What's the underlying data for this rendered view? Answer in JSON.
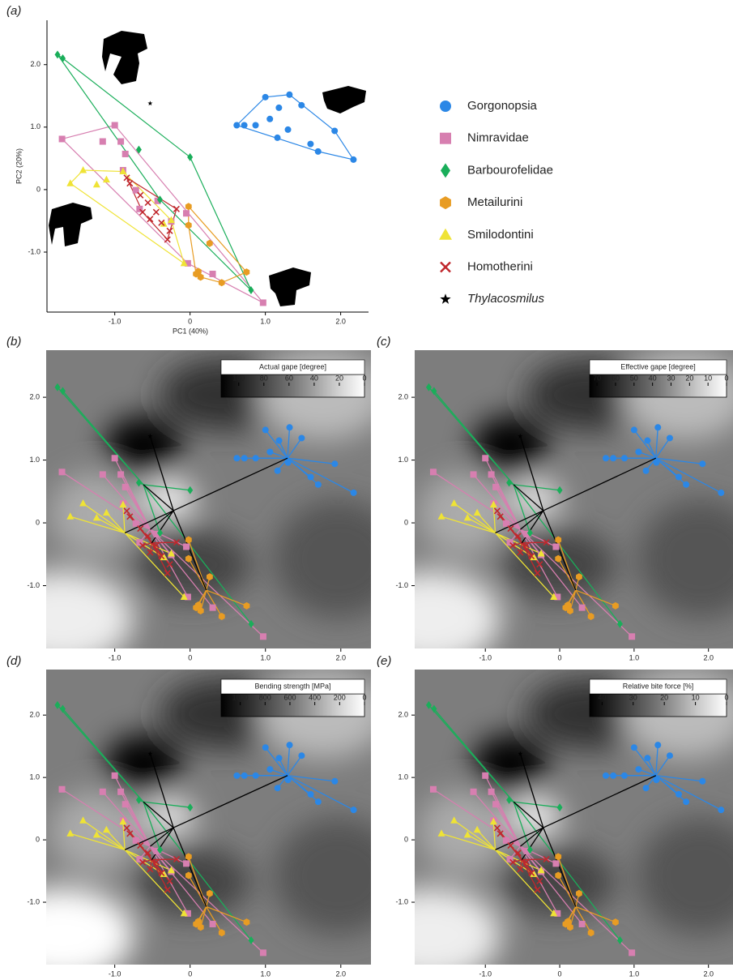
{
  "chart_data": [
    {
      "type": "scatter",
      "title": "(a)",
      "x_label": "PC1 (40%)",
      "y_label": "PC2 (20%)",
      "xlim": [
        -1.9,
        2.37
      ],
      "ylim": [
        -1.96,
        2.71
      ],
      "xticks": [
        {
          "value": -1,
          "label": "-1.0"
        },
        0,
        {
          "value": 1,
          "label": "1.0"
        },
        {
          "value": 2,
          "label": "2.0"
        }
      ],
      "yticks": [
        {
          "value": 2,
          "label": "2.0"
        },
        {
          "value": 1,
          "label": "1.0"
        },
        0,
        {
          "value": -1,
          "label": "-1.0"
        }
      ],
      "hulls": true,
      "series": [
        {
          "name": "Gorgonopsia",
          "color": "#2b87e6",
          "text_color": "#2a7fc4",
          "marker": "circle",
          "x": [
            0.62,
            0.72,
            0.87,
            1.0,
            1.32,
            1.48,
            1.18,
            1.06,
            1.3,
            1.16,
            1.92,
            1.6,
            2.17,
            1.7
          ],
          "y": [
            1.03,
            1.03,
            1.03,
            1.48,
            1.52,
            1.35,
            1.31,
            1.13,
            0.96,
            0.83,
            0.94,
            0.73,
            0.48,
            0.61
          ]
        },
        {
          "name": "Nimravidae",
          "color": "#d77fb0",
          "text_color": "#d070a8",
          "marker": "square",
          "x": [
            -1.7,
            -1.0,
            -1.16,
            -0.92,
            -0.86,
            -0.89,
            -0.72,
            -0.67,
            -0.43,
            -0.25,
            -0.05,
            -0.03,
            0.3,
            0.97
          ],
          "y": [
            0.81,
            1.03,
            0.77,
            0.77,
            0.57,
            0.31,
            -0.01,
            -0.31,
            -0.18,
            -0.51,
            -0.38,
            -1.18,
            -1.35,
            -1.81
          ]
        },
        {
          "name": "Barbourofelidae",
          "color": "#1aae5a",
          "text_color": "#1a9e50",
          "marker": "diamond",
          "x": [
            -1.76,
            -1.69,
            -0.68,
            0.0,
            -0.4,
            0.81
          ],
          "y": [
            2.16,
            2.1,
            0.64,
            0.52,
            -0.16,
            -1.61
          ]
        },
        {
          "name": "Metailurini",
          "color": "#e89c23",
          "text_color": "#e0901a",
          "marker": "hexagon",
          "x": [
            -0.02,
            -0.02,
            0.26,
            0.11,
            0.14,
            0.42,
            0.75,
            0.08
          ],
          "y": [
            -0.27,
            -0.57,
            -0.86,
            -1.31,
            -1.4,
            -1.49,
            -1.32,
            -1.35
          ]
        },
        {
          "name": "Smilodontini",
          "color": "#efe335",
          "text_color": "#e6d62a",
          "marker": "triangle",
          "x": [
            -1.42,
            -1.59,
            -1.24,
            -1.11,
            -0.89,
            -0.25,
            -0.08,
            -0.35
          ],
          "y": [
            0.31,
            0.1,
            0.08,
            0.16,
            0.29,
            -0.49,
            -1.18,
            -0.55
          ]
        },
        {
          "name": "Homotherini",
          "color": "#c0282d",
          "text_color": "#b82a2e",
          "marker": "x",
          "x": [
            -0.84,
            -0.8,
            -0.66,
            -0.56,
            -0.53,
            -0.38,
            -0.27,
            -0.18,
            -0.63,
            -0.45,
            -0.3
          ],
          "y": [
            0.19,
            0.1,
            -0.09,
            -0.21,
            -0.47,
            -0.53,
            -0.66,
            -0.31,
            -0.36,
            -0.36,
            -0.8
          ]
        },
        {
          "name": "Thylacosmilus",
          "color": "#000000",
          "text_color": "#000000",
          "marker": "star",
          "italic": true,
          "x": [
            -0.53
          ],
          "y": [
            1.38
          ]
        }
      ]
    },
    {
      "type": "contour",
      "title": "(b)",
      "colorbar_label": "Actual gape [degree]",
      "clim": [
        114,
        0
      ],
      "cticks": [
        100,
        80,
        60,
        40,
        20,
        0
      ],
      "xlim": [
        -1.91,
        2.4
      ],
      "ylim": [
        -2.0,
        2.75
      ],
      "xticks": [
        {
          "value": -1,
          "label": "-1.0"
        },
        0,
        {
          "value": 1,
          "label": "1.0"
        },
        {
          "value": 2,
          "label": "2.0"
        }
      ],
      "yticks": [
        {
          "value": 2,
          "label": "2.0"
        },
        {
          "value": 1,
          "label": "1.0"
        },
        0,
        {
          "value": -1,
          "label": "-1.0"
        }
      ]
    },
    {
      "type": "contour",
      "title": "(c)",
      "colorbar_label": "Effective gape [degree]",
      "clim": [
        74,
        0
      ],
      "cticks": [
        70,
        60,
        50,
        40,
        30,
        20,
        10,
        0
      ],
      "xlim": [
        -1.95,
        2.33
      ],
      "ylim": [
        -2.0,
        2.75
      ],
      "xticks": [
        {
          "value": -1,
          "label": "-1.0"
        },
        0,
        {
          "value": 1,
          "label": "1.0"
        },
        {
          "value": 2,
          "label": "2.0"
        }
      ],
      "yticks": [
        {
          "value": 2,
          "label": "2.0"
        },
        {
          "value": 1,
          "label": "1.0"
        },
        0,
        {
          "value": -1,
          "label": "-1.0"
        }
      ]
    },
    {
      "type": "contour",
      "title": "(d)",
      "colorbar_label": "Bending strength [MPa]",
      "clim": [
        1154,
        0
      ],
      "cticks": [
        1000,
        800,
        600,
        400,
        200,
        0
      ],
      "xlim": [
        -1.91,
        2.4
      ],
      "ylim": [
        -2.0,
        2.73
      ],
      "xticks": [
        {
          "value": -1,
          "label": "-1.0"
        },
        0,
        {
          "value": 1,
          "label": "1.0"
        },
        {
          "value": 2,
          "label": "2.0"
        }
      ],
      "yticks": [
        {
          "value": 2,
          "label": "2.0"
        },
        {
          "value": 1,
          "label": "1.0"
        },
        0,
        {
          "value": -1,
          "label": "-1.0"
        }
      ]
    },
    {
      "type": "contour",
      "title": "(e)",
      "colorbar_label": "Relative bite force [%]",
      "clim": [
        44,
        0
      ],
      "cticks": [
        40,
        30,
        20,
        10,
        0
      ],
      "xlim": [
        -1.95,
        2.33
      ],
      "ylim": [
        -2.0,
        2.73
      ],
      "xticks": [
        {
          "value": -1,
          "label": "-1.0"
        },
        0,
        {
          "value": 1,
          "label": "1.0"
        },
        {
          "value": 2,
          "label": "2.0"
        }
      ],
      "yticks": [
        {
          "value": 2,
          "label": "2.0"
        },
        {
          "value": 1,
          "label": "1.0"
        },
        0,
        {
          "value": -1,
          "label": "-1.0"
        }
      ]
    }
  ]
}
